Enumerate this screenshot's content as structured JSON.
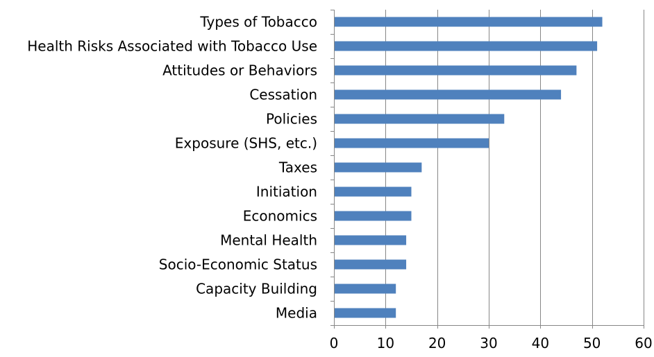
{
  "chart_data": {
    "type": "bar",
    "orientation": "horizontal",
    "categories": [
      "Types of Tobacco",
      "Health Risks Associated with Tobacco Use",
      "Attitudes or Behaviors",
      "Cessation",
      "Policies",
      "Exposure (SHS, etc.)",
      "Taxes",
      "Initiation",
      "Economics",
      "Mental Health",
      "Socio-Economic Status",
      "Capacity Building",
      "Media"
    ],
    "values": [
      52,
      51,
      47,
      44,
      33,
      30,
      17,
      15,
      15,
      14,
      14,
      12,
      12
    ],
    "xlim": [
      0,
      60
    ],
    "xticks": [
      0,
      10,
      20,
      30,
      40,
      50,
      60
    ],
    "grid": true,
    "legend": "none",
    "colors": {
      "bar": "#4f81bd",
      "grid": "#868686",
      "axis": "#868686"
    }
  }
}
